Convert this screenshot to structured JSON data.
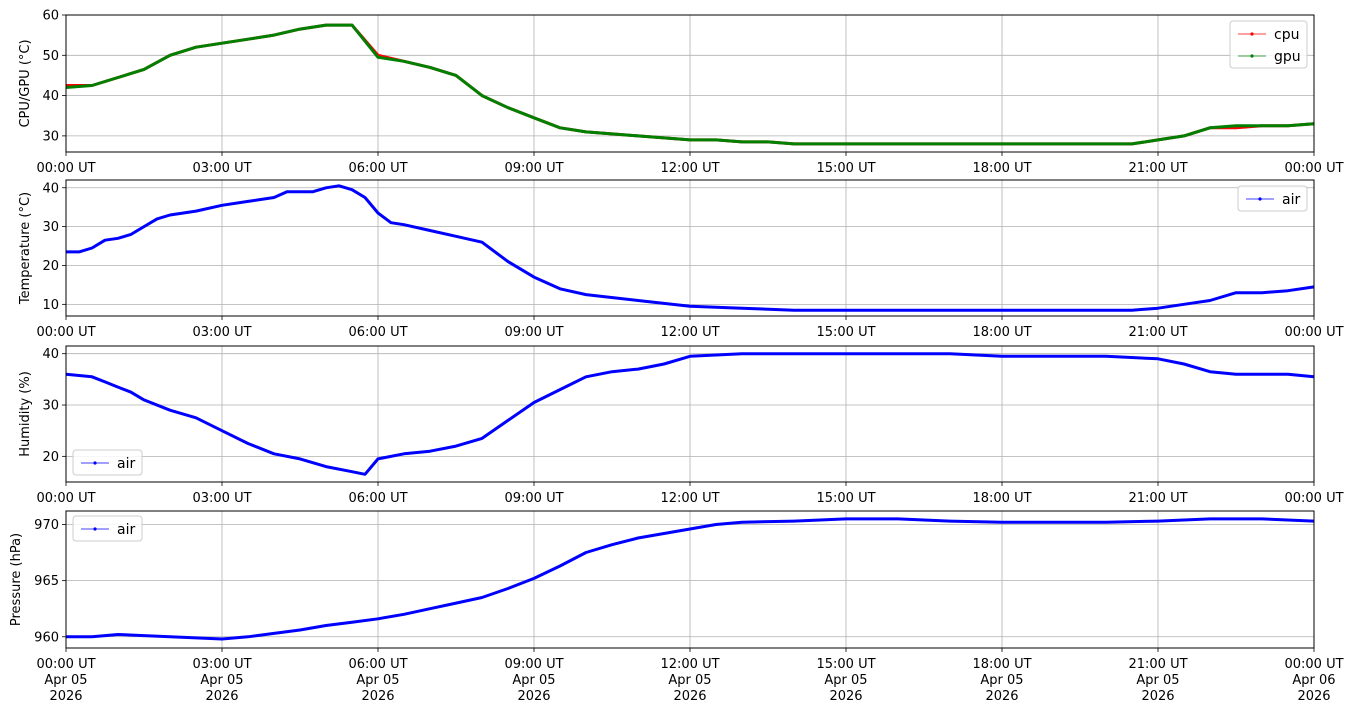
{
  "chart_data": [
    {
      "type": "line",
      "ylabel": "CPU/GPU (°C)",
      "ylim": [
        26,
        60
      ],
      "yticks": [
        30,
        40,
        50,
        60
      ],
      "x_range_hours": [
        0,
        24
      ],
      "xtick_labels": [
        "00:00 UT",
        "03:00 UT",
        "06:00 UT",
        "09:00 UT",
        "12:00 UT",
        "15:00 UT",
        "18:00 UT",
        "21:00 UT",
        "00:00 UT"
      ],
      "grid": true,
      "legend_position": "top-right",
      "series": [
        {
          "name": "cpu",
          "color": "#ff0000",
          "x": [
            0,
            0.5,
            1,
            1.5,
            2,
            2.5,
            3,
            3.5,
            4,
            4.5,
            5,
            5.5,
            6,
            6.5,
            7,
            7.5,
            8,
            8.5,
            9,
            9.5,
            10,
            10.5,
            11,
            11.5,
            12,
            12.5,
            13,
            13.5,
            14,
            14.5,
            15,
            15.5,
            16,
            16.5,
            17,
            17.5,
            18,
            18.5,
            19,
            19.5,
            20,
            20.5,
            21,
            21.5,
            22,
            22.5,
            23,
            23.5,
            24
          ],
          "y": [
            42.5,
            42.5,
            44.5,
            46.5,
            50,
            52,
            53,
            54,
            55,
            56.5,
            57.5,
            57.5,
            50,
            48.5,
            47,
            45,
            40,
            37,
            34.5,
            32,
            31,
            30.5,
            30,
            29.5,
            29,
            29,
            28.5,
            28.5,
            28,
            28,
            28,
            28,
            28,
            28,
            28,
            28,
            28,
            28,
            28,
            28,
            28,
            28,
            29,
            30,
            32,
            32,
            32.5,
            32.5,
            33
          ]
        },
        {
          "name": "gpu",
          "color": "#008000",
          "x": [
            0,
            0.5,
            1,
            1.5,
            2,
            2.5,
            3,
            3.5,
            4,
            4.5,
            5,
            5.5,
            6,
            6.5,
            7,
            7.5,
            8,
            8.5,
            9,
            9.5,
            10,
            10.5,
            11,
            11.5,
            12,
            12.5,
            13,
            13.5,
            14,
            14.5,
            15,
            15.5,
            16,
            16.5,
            17,
            17.5,
            18,
            18.5,
            19,
            19.5,
            20,
            20.5,
            21,
            21.5,
            22,
            22.5,
            23,
            23.5,
            24
          ],
          "y": [
            42,
            42.5,
            44.5,
            46.5,
            50,
            52,
            53,
            54,
            55,
            56.5,
            57.5,
            57.5,
            49.5,
            48.5,
            47,
            45,
            40,
            37,
            34.5,
            32,
            31,
            30.5,
            30,
            29.5,
            29,
            29,
            28.5,
            28.5,
            28,
            28,
            28,
            28,
            28,
            28,
            28,
            28,
            28,
            28,
            28,
            28,
            28,
            28,
            29,
            30,
            32,
            32.5,
            32.5,
            32.5,
            33
          ]
        }
      ]
    },
    {
      "type": "line",
      "ylabel": "Temperature (°C)",
      "ylim": [
        7,
        42
      ],
      "yticks": [
        10,
        20,
        30,
        40
      ],
      "x_range_hours": [
        0,
        24
      ],
      "xtick_labels": [
        "00:00 UT",
        "03:00 UT",
        "06:00 UT",
        "09:00 UT",
        "12:00 UT",
        "15:00 UT",
        "18:00 UT",
        "21:00 UT",
        "00:00 UT"
      ],
      "grid": true,
      "legend_position": "top-right",
      "series": [
        {
          "name": "air",
          "color": "#0000ff",
          "x": [
            0,
            0.25,
            0.5,
            0.75,
            1,
            1.25,
            1.5,
            1.75,
            2,
            2.5,
            3,
            3.5,
            4,
            4.25,
            4.5,
            4.75,
            5,
            5.25,
            5.5,
            5.75,
            6,
            6.25,
            6.5,
            7,
            7.5,
            8,
            8.5,
            9,
            9.5,
            10,
            11,
            12,
            13,
            14,
            15,
            16,
            17,
            18,
            19,
            20,
            20.5,
            21,
            21.5,
            22,
            22.5,
            23,
            23.5,
            24
          ],
          "y": [
            23.5,
            23.5,
            24.5,
            26.5,
            27,
            28,
            30,
            32,
            33,
            34,
            35.5,
            36.5,
            37.5,
            39,
            39,
            39,
            40,
            40.5,
            39.5,
            37.5,
            33.5,
            31,
            30.5,
            29,
            27.5,
            26,
            21,
            17,
            14,
            12.5,
            11,
            9.5,
            9,
            8.5,
            8.5,
            8.5,
            8.5,
            8.5,
            8.5,
            8.5,
            8.5,
            9,
            10,
            11,
            13,
            13,
            13.5,
            14.5
          ]
        }
      ]
    },
    {
      "type": "line",
      "ylabel": "Humidity (%)",
      "ylim": [
        15,
        41.5
      ],
      "yticks": [
        20,
        30,
        40
      ],
      "x_range_hours": [
        0,
        24
      ],
      "xtick_labels": [
        "00:00 UT",
        "03:00 UT",
        "06:00 UT",
        "09:00 UT",
        "12:00 UT",
        "15:00 UT",
        "18:00 UT",
        "21:00 UT",
        "00:00 UT"
      ],
      "grid": true,
      "legend_position": "bottom-left",
      "series": [
        {
          "name": "air",
          "color": "#0000ff",
          "x": [
            0,
            0.5,
            0.75,
            1,
            1.25,
            1.5,
            2,
            2.5,
            3,
            3.5,
            4,
            4.5,
            5,
            5.5,
            5.75,
            6,
            6.5,
            7,
            7.5,
            8,
            8.5,
            9,
            9.5,
            10,
            10.5,
            11,
            11.5,
            12,
            13,
            14,
            15,
            16,
            17,
            18,
            19,
            20,
            21,
            21.5,
            22,
            22.5,
            23,
            23.5,
            24
          ],
          "y": [
            36,
            35.5,
            34.5,
            33.5,
            32.5,
            31,
            29,
            27.5,
            25,
            22.5,
            20.5,
            19.5,
            18,
            17,
            16.5,
            19.5,
            20.5,
            21,
            22,
            23.5,
            27,
            30.5,
            33,
            35.5,
            36.5,
            37,
            38,
            39.5,
            40,
            40,
            40,
            40,
            40,
            39.5,
            39.5,
            39.5,
            39,
            38,
            36.5,
            36,
            36,
            36,
            35.5
          ]
        }
      ]
    },
    {
      "type": "line",
      "ylabel": "Pressure (hPa)",
      "ylim": [
        959,
        971.2
      ],
      "yticks": [
        960,
        965,
        970
      ],
      "x_range_hours": [
        0,
        24
      ],
      "xtick_labels": [
        [
          "00:00 UT",
          "Apr 05",
          "2026"
        ],
        [
          "03:00 UT",
          "Apr 05",
          "2026"
        ],
        [
          "06:00 UT",
          "Apr 05",
          "2026"
        ],
        [
          "09:00 UT",
          "Apr 05",
          "2026"
        ],
        [
          "12:00 UT",
          "Apr 05",
          "2026"
        ],
        [
          "15:00 UT",
          "Apr 05",
          "2026"
        ],
        [
          "18:00 UT",
          "Apr 05",
          "2026"
        ],
        [
          "21:00 UT",
          "Apr 05",
          "2026"
        ],
        [
          "00:00 UT",
          "Apr 06",
          "2026"
        ]
      ],
      "grid": true,
      "legend_position": "top-left",
      "series": [
        {
          "name": "air",
          "color": "#0000ff",
          "x": [
            0,
            0.5,
            1,
            1.5,
            2,
            2.5,
            3,
            3.5,
            4,
            4.5,
            5,
            5.5,
            6,
            6.5,
            7,
            7.5,
            8,
            8.5,
            9,
            9.5,
            10,
            10.5,
            11,
            11.5,
            12,
            12.5,
            13,
            14,
            15,
            16,
            17,
            18,
            19,
            20,
            21,
            22,
            23,
            24
          ],
          "y": [
            960,
            960,
            960.2,
            960.1,
            960,
            959.9,
            959.8,
            960,
            960.3,
            960.6,
            961,
            961.3,
            961.6,
            962,
            962.5,
            963,
            963.5,
            964.3,
            965.2,
            966.3,
            967.5,
            968.2,
            968.8,
            969.2,
            969.6,
            970,
            970.2,
            970.3,
            970.5,
            970.5,
            970.3,
            970.2,
            970.2,
            970.2,
            970.3,
            970.5,
            970.5,
            970.3
          ]
        }
      ]
    }
  ]
}
